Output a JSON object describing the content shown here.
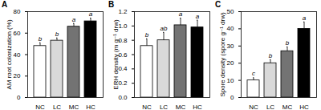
{
  "chart_data": [
    {
      "type": "bar",
      "title": "A",
      "y_label": "AM root colonization (%)",
      "categories": [
        "NC",
        "LC",
        "MC",
        "HC"
      ],
      "values": [
        48,
        53,
        66,
        71
      ],
      "errors": [
        3,
        2.5,
        3,
        3
      ],
      "letters": [
        "b",
        "b",
        "a",
        "a"
      ],
      "colors": [
        "#ffffff",
        "#d9d9d9",
        "#737373",
        "#000000"
      ],
      "ylim": [
        0,
        80
      ],
      "yticks": [
        0,
        20,
        40,
        60,
        80
      ]
    },
    {
      "type": "bar",
      "title": "B",
      "y_label": "ERH density (m g⁻¹ drw)",
      "categories": [
        "NC",
        "LC",
        "MC",
        "HC"
      ],
      "values": [
        0.72,
        0.8,
        1.01,
        0.98
      ],
      "errors": [
        0.1,
        0.11,
        0.1,
        0.1
      ],
      "letters": [
        "b",
        "ab",
        "a",
        "a"
      ],
      "colors": [
        "#ffffff",
        "#d9d9d9",
        "#737373",
        "#000000"
      ],
      "ylim": [
        0,
        1.2
      ],
      "yticks": [
        {
          "value": 0,
          "label": "0.0"
        },
        0.2,
        0.4,
        0.6,
        0.8,
        {
          "value": 1,
          "label": "1.0"
        },
        1.2
      ]
    },
    {
      "type": "bar",
      "title": "C",
      "y_label": "Spore density (spore g⁻¹ drw)",
      "categories": [
        "NC",
        "LC",
        "MC",
        "HC"
      ],
      "values": [
        10,
        20,
        27,
        40
      ],
      "errors": [
        1.5,
        2,
        2.5,
        4
      ],
      "letters": [
        "c",
        "b",
        "b",
        "a"
      ],
      "colors": [
        "#ffffff",
        "#d9d9d9",
        "#737373",
        "#000000"
      ],
      "ylim": [
        0,
        50
      ],
      "yticks": [
        0,
        10,
        20,
        30,
        40,
        50
      ]
    }
  ]
}
